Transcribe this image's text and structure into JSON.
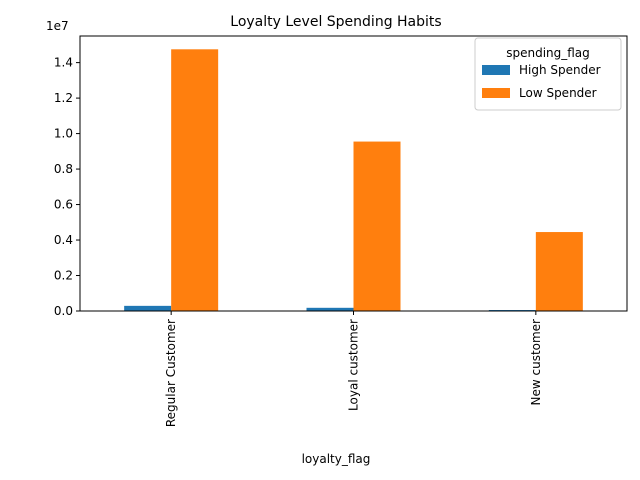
{
  "chart_data": {
    "type": "bar",
    "title": "Loyalty Level Spending Habits",
    "xlabel": "loyalty_flag",
    "ylabel": "",
    "categories": [
      "Regular Customer",
      "Loyal customer",
      "New customer"
    ],
    "series": [
      {
        "name": "High Spender",
        "color": "#1f77b4",
        "values": [
          290000,
          180000,
          55000
        ]
      },
      {
        "name": "Low Spender",
        "color": "#ff7f0e",
        "values": [
          14750000,
          9550000,
          4450000
        ]
      }
    ],
    "ylim": [
      0,
      15500000
    ],
    "yticks": [
      0,
      2000000,
      4000000,
      6000000,
      8000000,
      10000000,
      12000000,
      14000000
    ],
    "ytick_labels": [
      "0.0",
      "0.2",
      "0.4",
      "0.6",
      "0.8",
      "1.0",
      "1.2",
      "1.4"
    ],
    "y_offset_label": "1e7",
    "legend": {
      "title": "spending_flag",
      "placement": "top-right"
    },
    "grid": false
  }
}
